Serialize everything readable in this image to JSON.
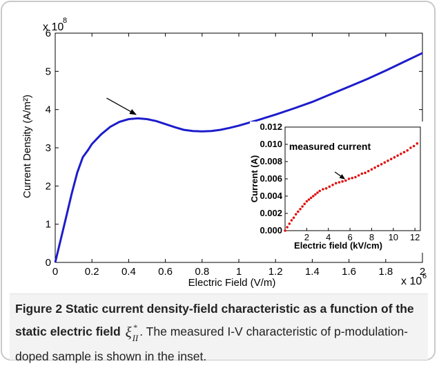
{
  "chart_data": [
    {
      "type": "line",
      "title": "",
      "xlabel": "Electric Field (V/m)",
      "ylabel": "Current Density (A/m²)",
      "x_multiplier_label": "x 10",
      "x_multiplier_exp": "6",
      "y_multiplier_label": "x 10",
      "y_multiplier_exp": "8",
      "xlim": [
        0,
        2.0
      ],
      "ylim": [
        0,
        6
      ],
      "x_ticks": [
        "0",
        "0.2",
        "0.4",
        "0.6",
        "0.8",
        "1",
        "1.2",
        "1.4",
        "1.6",
        "1.8",
        "2"
      ],
      "y_ticks": [
        "0",
        "1",
        "2",
        "3",
        "4",
        "5",
        "6"
      ],
      "line_color": "#1c1ccc",
      "series": [
        {
          "x": [
            0,
            0.03,
            0.06,
            0.09,
            0.12,
            0.15,
            0.18,
            0.2,
            0.25,
            0.3,
            0.35,
            0.4,
            0.45,
            0.5,
            0.55,
            0.6,
            0.65,
            0.7,
            0.75,
            0.8,
            0.85,
            0.9,
            0.95,
            1.0,
            1.1,
            1.2,
            1.3,
            1.4,
            1.5,
            1.6,
            1.7,
            1.8,
            1.9,
            2.0
          ],
          "y": [
            0,
            0.6,
            1.2,
            1.8,
            2.35,
            2.75,
            2.95,
            3.1,
            3.35,
            3.55,
            3.68,
            3.75,
            3.77,
            3.75,
            3.7,
            3.62,
            3.54,
            3.47,
            3.44,
            3.43,
            3.44,
            3.47,
            3.52,
            3.58,
            3.72,
            3.87,
            4.03,
            4.2,
            4.4,
            4.6,
            4.8,
            5.02,
            5.25,
            5.48
          ]
        }
      ],
      "annotation": {
        "type": "arrow",
        "from": [
          0.28,
          4.3
        ],
        "to": [
          0.44,
          3.87
        ]
      }
    },
    {
      "type": "scatter",
      "title": "measured current",
      "xlabel": "Electric field (kV/cm)",
      "ylabel": "Current (A)",
      "xlim": [
        0,
        12.5
      ],
      "ylim": [
        0,
        0.012
      ],
      "x_ticks": [
        "2",
        "4",
        "6",
        "8",
        "10",
        "12"
      ],
      "y_ticks": [
        "0.000",
        "0.002",
        "0.004",
        "0.006",
        "0.008",
        "0.010",
        "0.012"
      ],
      "marker_color": "#e0100f",
      "series": [
        {
          "x": [
            0.0,
            0.2,
            0.4,
            0.6,
            0.8,
            1.0,
            1.2,
            1.4,
            1.6,
            1.8,
            2.0,
            2.2,
            2.4,
            2.6,
            2.8,
            3.0,
            3.2,
            3.5,
            3.8,
            4.1,
            4.4,
            4.7,
            5.0,
            5.3,
            5.6,
            5.9,
            6.2,
            6.5,
            6.8,
            7.1,
            7.4,
            7.7,
            8.0,
            8.3,
            8.6,
            8.9,
            9.2,
            9.5,
            9.8,
            10.1,
            10.4,
            10.7,
            11.0,
            11.3,
            11.6,
            11.9,
            12.2
          ],
          "y": [
            0.0,
            0.0004,
            0.0008,
            0.0012,
            0.0015,
            0.0019,
            0.0022,
            0.0025,
            0.0028,
            0.0031,
            0.0034,
            0.0036,
            0.0038,
            0.004,
            0.0042,
            0.0044,
            0.0046,
            0.0048,
            0.0049,
            0.0051,
            0.0053,
            0.0055,
            0.0056,
            0.0057,
            0.0058,
            0.006,
            0.0061,
            0.0062,
            0.0064,
            0.0066,
            0.0067,
            0.0069,
            0.0071,
            0.0073,
            0.0075,
            0.0077,
            0.0079,
            0.0081,
            0.0083,
            0.0085,
            0.0087,
            0.0089,
            0.0091,
            0.0093,
            0.0096,
            0.0098,
            0.0101
          ]
        }
      ],
      "annotation": {
        "type": "arrow",
        "from": [
          4.6,
          0.0068
        ],
        "to": [
          5.5,
          0.006
        ]
      }
    }
  ],
  "caption": {
    "label": "Figure 2",
    "title_text": "Static current density-field characteristic as a function of the static electric field",
    "symbol": "ξ",
    "symbol_sup": "*",
    "symbol_sub": "II",
    "body_text": ". The measured I-V characteristic of p-modulation-doped sample is shown in the inset."
  }
}
